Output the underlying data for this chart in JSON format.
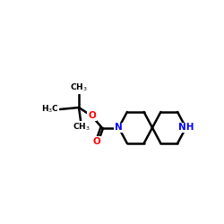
{
  "bg_color": "#ffffff",
  "bond_color": "#000000",
  "n_color": "#0000ff",
  "o_color": "#ff0000",
  "line_width": 1.8,
  "font_size_label": 7.5,
  "font_size_small": 6.5,
  "figsize": [
    2.5,
    2.5
  ],
  "dpi": 100,
  "xlim": [
    0.0,
    10.0
  ],
  "ylim": [
    3.2,
    8.2
  ],
  "spiro_x": 6.8,
  "spiro_y": 5.0,
  "ring_hw": 0.75,
  "ring_hh": 0.7
}
